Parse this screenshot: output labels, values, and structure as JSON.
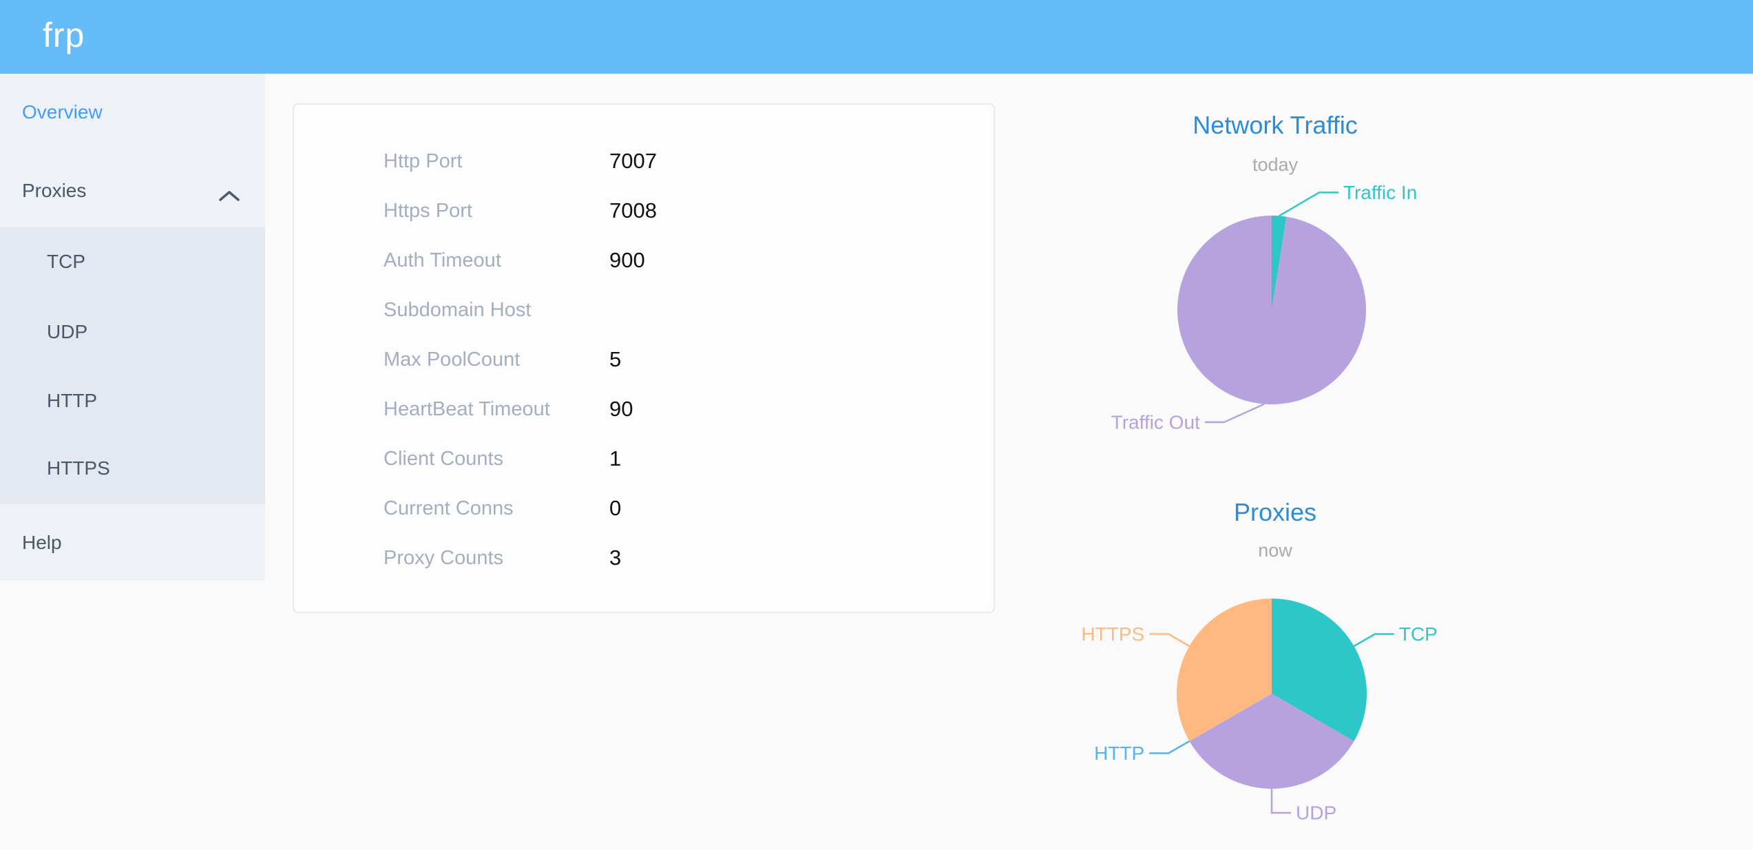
{
  "header": {
    "logo_text": "frp"
  },
  "sidebar": {
    "overview_label": "Overview",
    "proxies_label": "Proxies",
    "proxies_state": "expanded",
    "submenu": [
      "TCP",
      "UDP",
      "HTTP",
      "HTTPS"
    ],
    "help_label": "Help"
  },
  "overview": {
    "rows": [
      {
        "label": "Http Port",
        "value": "7007"
      },
      {
        "label": "Https Port",
        "value": "7008"
      },
      {
        "label": "Auth Timeout",
        "value": "900"
      },
      {
        "label": "Subdomain Host",
        "value": ""
      },
      {
        "label": "Max PoolCount",
        "value": "5"
      },
      {
        "label": "HeartBeat Timeout",
        "value": "90"
      },
      {
        "label": "Client Counts",
        "value": "1"
      },
      {
        "label": "Current Conns",
        "value": "0"
      },
      {
        "label": "Proxy Counts",
        "value": "3"
      }
    ]
  },
  "chart_data": [
    {
      "type": "pie",
      "title": "Network Traffic",
      "subtitle": "today",
      "legend_position": "none",
      "labels": "outside-callout",
      "values_note": "no numeric labels shown; shares estimated from arc angles",
      "slices": [
        {
          "name": "Traffic In",
          "value": 2.5,
          "color": "#2ec7c9",
          "label_deg": 22,
          "label_len": 47
        },
        {
          "name": "Traffic Out",
          "value": 97.5,
          "color": "#b6a2de",
          "label_deg": 203,
          "label_len": 40
        }
      ]
    },
    {
      "type": "pie",
      "title": "Proxies",
      "subtitle": "now",
      "legend_position": "none",
      "labels": "outside-callout",
      "values_note": "counts by proxy type; HTTP slice is zero-width",
      "slices": [
        {
          "name": "TCP",
          "value": 1,
          "color": "#2ec7c9",
          "label_deg": 60
        },
        {
          "name": "UDP",
          "value": 1,
          "color": "#b6a2de",
          "label_deg": 180
        },
        {
          "name": "HTTP",
          "value": 0,
          "color": "#5ab1ef",
          "label_deg": 240
        },
        {
          "name": "HTTPS",
          "value": 1,
          "color": "#ffb980",
          "label_deg": 300
        }
      ]
    }
  ],
  "colors": {
    "header_bg": "#66bcf9",
    "logo_text": "#ffffff",
    "page_bg": "#fafafa",
    "sidebar_bg": "#eef1f6",
    "submenu_bg": "#e4e8f1",
    "sidebar_item": "#48576a",
    "sidebar_active": "#409eff",
    "chevron": "#4a5a6e",
    "card_bg": "#fdfdfe",
    "card_border": "#e6eaf2",
    "row_label": "#a3aec0",
    "row_value": "#111111",
    "chart_title": "#2b8dd9",
    "chart_subtitle": "#aaaaaa"
  }
}
